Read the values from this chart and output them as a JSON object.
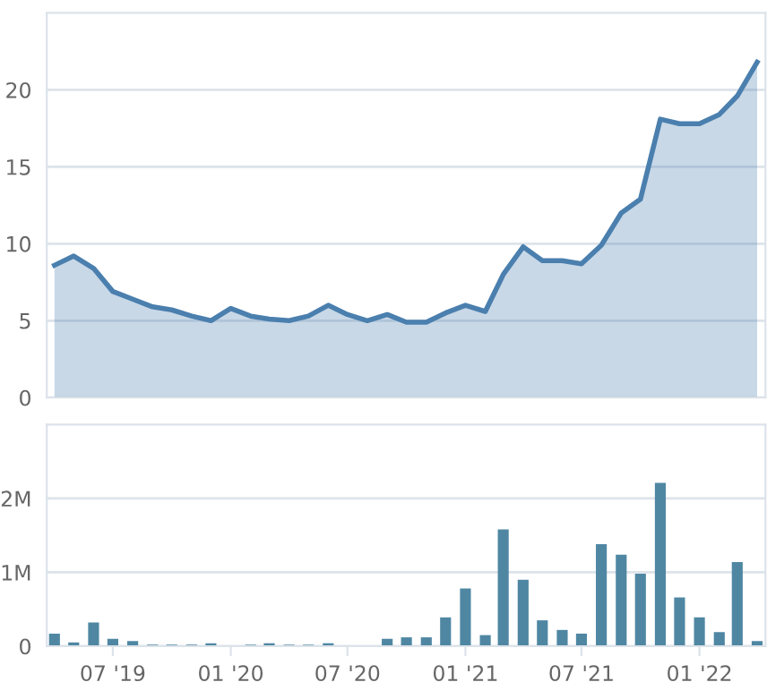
{
  "chart_data": [
    {
      "type": "area",
      "color": "#4a7fae",
      "xlim": [
        "2019-03-20",
        "2022-04-14"
      ],
      "ylim": [
        0,
        25
      ],
      "yticks": [
        0,
        5,
        10,
        15,
        20
      ],
      "grid": "y",
      "tick_labels": "y",
      "x": [
        "2019-04",
        "2019-05",
        "2019-06",
        "2019-07",
        "2019-08",
        "2019-09",
        "2019-10",
        "2019-11",
        "2019-12",
        "2020-01",
        "2020-02",
        "2020-03",
        "2020-04",
        "2020-05",
        "2020-06",
        "2020-07",
        "2020-08",
        "2020-09",
        "2020-10",
        "2020-11",
        "2020-12",
        "2021-01",
        "2021-02",
        "2021-03",
        "2021-04",
        "2021-05",
        "2021-06",
        "2021-07",
        "2021-08",
        "2021-09",
        "2021-10",
        "2021-11",
        "2021-12",
        "2022-01",
        "2022-02",
        "2022-03",
        "2022-04"
      ],
      "values": [
        8.6,
        9.2,
        8.4,
        6.9,
        6.4,
        5.9,
        5.7,
        5.3,
        5.0,
        5.8,
        5.3,
        5.1,
        5.0,
        5.3,
        6.0,
        5.4,
        5.0,
        5.4,
        4.9,
        4.9,
        5.5,
        6.0,
        5.6,
        8.0,
        9.8,
        8.9,
        8.9,
        8.7,
        9.9,
        12.0,
        12.9,
        18.1,
        17.8,
        17.8,
        18.4,
        19.6,
        21.8
      ]
    },
    {
      "type": "bar",
      "color": "#4f87a3",
      "xlim": [
        "2019-03-20",
        "2022-04-14"
      ],
      "ylim": [
        0,
        3000000
      ],
      "yticks": [
        0,
        {
          "value": 1000000,
          "label": "1M"
        },
        {
          "value": 2000000,
          "label": "2M"
        }
      ],
      "grid": "y",
      "xticks": [
        {
          "value": "2019-07",
          "label": "07 '19"
        },
        {
          "value": "2020-01",
          "label": "01 '20"
        },
        {
          "value": "2020-07",
          "label": "07 '20"
        },
        {
          "value": "2021-01",
          "label": "01 '21"
        },
        {
          "value": "2021-07",
          "label": "07 '21"
        },
        {
          "value": "2022-01",
          "label": "01 '22"
        }
      ],
      "x": [
        "2019-04",
        "2019-05",
        "2019-06",
        "2019-07",
        "2019-08",
        "2019-09",
        "2019-10",
        "2019-11",
        "2019-12",
        "2020-01",
        "2020-02",
        "2020-03",
        "2020-04",
        "2020-05",
        "2020-06",
        "2020-07",
        "2020-08",
        "2020-09",
        "2020-10",
        "2020-11",
        "2020-12",
        "2021-01",
        "2021-02",
        "2021-03",
        "2021-04",
        "2021-05",
        "2021-06",
        "2021-07",
        "2021-08",
        "2021-09",
        "2021-10",
        "2021-11",
        "2021-12",
        "2022-01",
        "2022-02",
        "2022-03",
        "2022-04"
      ],
      "values": [
        170000,
        50000,
        320000,
        100000,
        70000,
        20000,
        20000,
        20000,
        40000,
        0,
        20000,
        40000,
        20000,
        20000,
        40000,
        0,
        0,
        100000,
        120000,
        120000,
        390000,
        780000,
        150000,
        1580000,
        900000,
        350000,
        220000,
        170000,
        1380000,
        1240000,
        980000,
        2210000,
        660000,
        390000,
        190000,
        1140000,
        70000
      ]
    }
  ]
}
